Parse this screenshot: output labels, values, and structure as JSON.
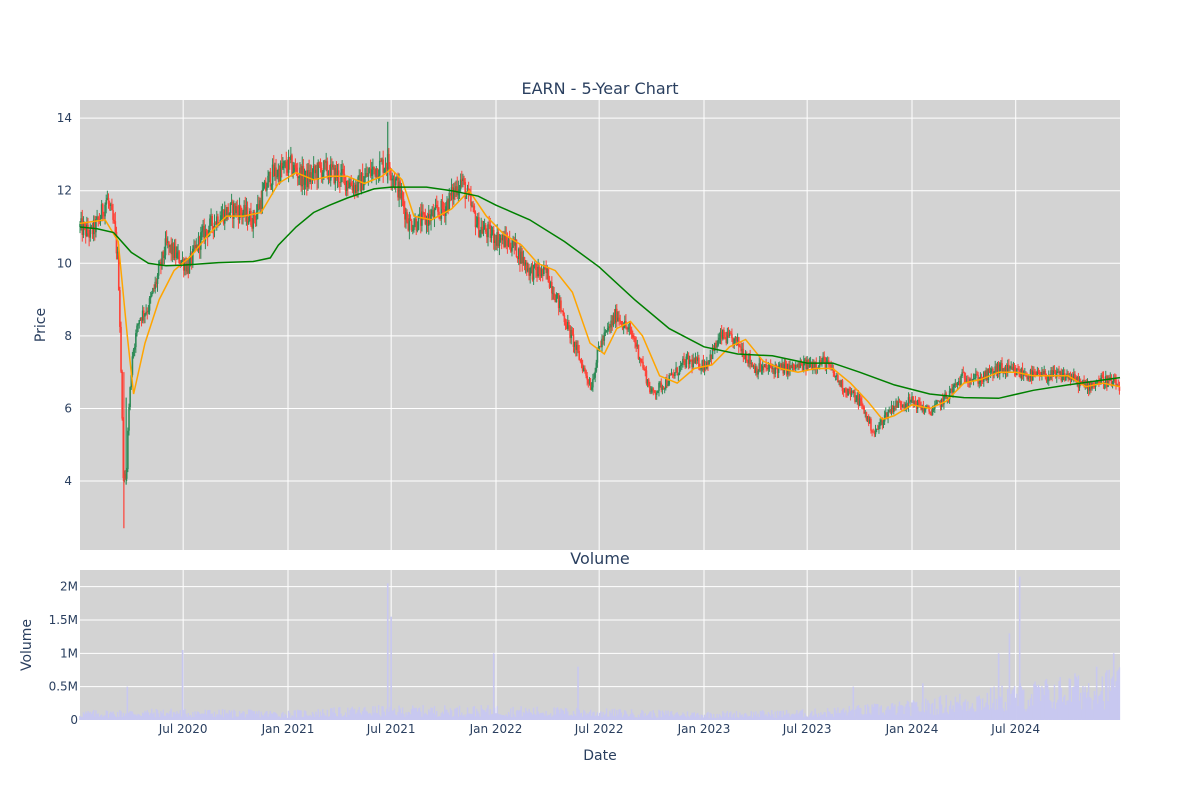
{
  "colors": {
    "plot_bg": "#d3d3d3",
    "grid": "#ffffff",
    "up": "#2e8b57",
    "down": "#ff4136",
    "ma_short": "#ffa500",
    "ma_long": "#008000",
    "volume": "#c8c8f0",
    "text": "#2a3f5f"
  },
  "chart_data": [
    {
      "type": "candlestick",
      "title": "EARN - 5-Year Chart",
      "ylabel": "Price",
      "ylim": [
        2.1,
        14.5
      ],
      "xlim": [
        "2020-01-02",
        "2024-12-31"
      ],
      "yticks": [
        4,
        6,
        8,
        10,
        12,
        14
      ],
      "grid": true,
      "close_path": [
        [
          "2020-01-02",
          11.0
        ],
        [
          "2020-01-20",
          10.8
        ],
        [
          "2020-02-05",
          11.2
        ],
        [
          "2020-02-18",
          11.8
        ],
        [
          "2020-03-02",
          11.0
        ],
        [
          "2020-03-09",
          10.0
        ],
        [
          "2020-03-13",
          7.8
        ],
        [
          "2020-03-18",
          4.2
        ],
        [
          "2020-03-23",
          4.0
        ],
        [
          "2020-03-27",
          5.8
        ],
        [
          "2020-04-03",
          7.5
        ],
        [
          "2020-04-15",
          8.5
        ],
        [
          "2020-05-01",
          8.8
        ],
        [
          "2020-05-15",
          9.5
        ],
        [
          "2020-06-01",
          10.5
        ],
        [
          "2020-06-20",
          10.2
        ],
        [
          "2020-07-10",
          9.9
        ],
        [
          "2020-08-01",
          10.7
        ],
        [
          "2020-09-01",
          11.3
        ],
        [
          "2020-10-01",
          11.5
        ],
        [
          "2020-11-01",
          11.2
        ],
        [
          "2020-12-01",
          12.4
        ],
        [
          "2021-01-04",
          12.7
        ],
        [
          "2021-02-01",
          12.3
        ],
        [
          "2021-03-01",
          12.6
        ],
        [
          "2021-04-01",
          12.4
        ],
        [
          "2021-05-01",
          12.1
        ],
        [
          "2021-06-01",
          12.6
        ],
        [
          "2021-06-25",
          12.8
        ],
        [
          "2021-07-15",
          12.0
        ],
        [
          "2021-08-01",
          11.1
        ],
        [
          "2021-09-01",
          11.2
        ],
        [
          "2021-10-01",
          11.5
        ],
        [
          "2021-11-01",
          12.3
        ],
        [
          "2021-12-01",
          11.0
        ],
        [
          "2022-01-03",
          10.7
        ],
        [
          "2022-02-01",
          10.5
        ],
        [
          "2022-03-01",
          9.8
        ],
        [
          "2022-04-01",
          9.7
        ],
        [
          "2022-05-01",
          8.5
        ],
        [
          "2022-06-01",
          7.2
        ],
        [
          "2022-06-17",
          6.6
        ],
        [
          "2022-07-01",
          7.7
        ],
        [
          "2022-08-01",
          8.6
        ],
        [
          "2022-09-01",
          7.9
        ],
        [
          "2022-10-01",
          6.4
        ],
        [
          "2022-11-01",
          6.8
        ],
        [
          "2022-12-01",
          7.3
        ],
        [
          "2023-01-03",
          7.2
        ],
        [
          "2023-02-01",
          8.0
        ],
        [
          "2023-03-01",
          7.8
        ],
        [
          "2023-04-01",
          7.1
        ],
        [
          "2023-05-01",
          7.1
        ],
        [
          "2023-06-01",
          7.1
        ],
        [
          "2023-07-01",
          7.2
        ],
        [
          "2023-08-01",
          7.3
        ],
        [
          "2023-09-01",
          6.6
        ],
        [
          "2023-10-01",
          6.2
        ],
        [
          "2023-10-27",
          5.3
        ],
        [
          "2023-11-15",
          5.8
        ],
        [
          "2023-12-01",
          6.1
        ],
        [
          "2024-01-02",
          6.2
        ],
        [
          "2024-02-01",
          5.9
        ],
        [
          "2024-03-01",
          6.3
        ],
        [
          "2024-04-01",
          6.9
        ],
        [
          "2024-05-01",
          6.8
        ],
        [
          "2024-06-01",
          7.1
        ],
        [
          "2024-07-01",
          7.0
        ],
        [
          "2024-08-01",
          6.9
        ],
        [
          "2024-09-01",
          6.9
        ],
        [
          "2024-10-01",
          6.9
        ],
        [
          "2024-11-01",
          6.6
        ],
        [
          "2024-12-01",
          6.8
        ],
        [
          "2024-12-31",
          6.6
        ]
      ],
      "ma_short": [
        [
          "2020-01-02",
          11.1
        ],
        [
          "2020-02-15",
          11.2
        ],
        [
          "2020-03-09",
          10.6
        ],
        [
          "2020-03-25",
          8.0
        ],
        [
          "2020-04-05",
          6.4
        ],
        [
          "2020-04-25",
          7.8
        ],
        [
          "2020-05-20",
          9.0
        ],
        [
          "2020-06-15",
          9.8
        ],
        [
          "2020-07-15",
          10.2
        ],
        [
          "2020-08-15",
          10.8
        ],
        [
          "2020-09-15",
          11.3
        ],
        [
          "2020-10-15",
          11.3
        ],
        [
          "2020-11-15",
          11.4
        ],
        [
          "2020-12-15",
          12.2
        ],
        [
          "2021-01-15",
          12.5
        ],
        [
          "2021-02-15",
          12.3
        ],
        [
          "2021-03-15",
          12.4
        ],
        [
          "2021-04-15",
          12.4
        ],
        [
          "2021-05-15",
          12.2
        ],
        [
          "2021-06-15",
          12.4
        ],
        [
          "2021-07-01",
          12.6
        ],
        [
          "2021-07-20",
          12.3
        ],
        [
          "2021-08-10",
          11.3
        ],
        [
          "2021-09-10",
          11.2
        ],
        [
          "2021-10-15",
          11.5
        ],
        [
          "2021-11-15",
          12.0
        ],
        [
          "2021-12-15",
          11.3
        ],
        [
          "2022-01-15",
          10.8
        ],
        [
          "2022-02-15",
          10.5
        ],
        [
          "2022-03-15",
          10.0
        ],
        [
          "2022-04-15",
          9.8
        ],
        [
          "2022-05-15",
          9.2
        ],
        [
          "2022-06-15",
          7.8
        ],
        [
          "2022-07-10",
          7.5
        ],
        [
          "2022-08-01",
          8.2
        ],
        [
          "2022-08-25",
          8.4
        ],
        [
          "2022-09-15",
          8.0
        ],
        [
          "2022-10-15",
          6.9
        ],
        [
          "2022-11-15",
          6.7
        ],
        [
          "2022-12-15",
          7.1
        ],
        [
          "2023-01-15",
          7.2
        ],
        [
          "2023-02-15",
          7.7
        ],
        [
          "2023-03-15",
          7.9
        ],
        [
          "2023-04-15",
          7.3
        ],
        [
          "2023-05-15",
          7.1
        ],
        [
          "2023-06-15",
          7.0
        ],
        [
          "2023-07-15",
          7.1
        ],
        [
          "2023-08-15",
          7.1
        ],
        [
          "2023-09-15",
          6.7
        ],
        [
          "2023-10-15",
          6.2
        ],
        [
          "2023-11-10",
          5.7
        ],
        [
          "2023-12-01",
          5.8
        ],
        [
          "2024-01-01",
          6.1
        ],
        [
          "2024-02-01",
          6.0
        ],
        [
          "2024-03-01",
          6.2
        ],
        [
          "2024-04-01",
          6.7
        ],
        [
          "2024-05-01",
          6.8
        ],
        [
          "2024-06-01",
          7.0
        ],
        [
          "2024-07-01",
          7.0
        ],
        [
          "2024-08-01",
          6.9
        ],
        [
          "2024-09-01",
          6.9
        ],
        [
          "2024-10-01",
          6.9
        ],
        [
          "2024-11-01",
          6.6
        ],
        [
          "2024-12-01",
          6.7
        ],
        [
          "2024-12-31",
          6.6
        ]
      ],
      "ma_long": [
        [
          "2020-01-02",
          11.0
        ],
        [
          "2020-02-01",
          10.95
        ],
        [
          "2020-03-01",
          10.85
        ],
        [
          "2020-04-01",
          10.3
        ],
        [
          "2020-05-01",
          10.0
        ],
        [
          "2020-06-01",
          9.93
        ],
        [
          "2020-07-01",
          9.95
        ],
        [
          "2020-09-01",
          10.02
        ],
        [
          "2020-11-01",
          10.05
        ],
        [
          "2020-12-01",
          10.15
        ],
        [
          "2020-12-15",
          10.5
        ],
        [
          "2021-01-15",
          11.0
        ],
        [
          "2021-02-15",
          11.4
        ],
        [
          "2021-03-15",
          11.6
        ],
        [
          "2021-04-15",
          11.8
        ],
        [
          "2021-06-01",
          12.05
        ],
        [
          "2021-07-01",
          12.1
        ],
        [
          "2021-09-01",
          12.1
        ],
        [
          "2021-10-15",
          12.0
        ],
        [
          "2021-12-01",
          11.85
        ],
        [
          "2022-01-01",
          11.6
        ],
        [
          "2022-03-01",
          11.2
        ],
        [
          "2022-05-01",
          10.6
        ],
        [
          "2022-07-01",
          9.9
        ],
        [
          "2022-09-01",
          9.0
        ],
        [
          "2022-11-01",
          8.2
        ],
        [
          "2023-01-01",
          7.7
        ],
        [
          "2023-03-01",
          7.5
        ],
        [
          "2023-05-01",
          7.45
        ],
        [
          "2023-07-01",
          7.25
        ],
        [
          "2023-08-15",
          7.25
        ],
        [
          "2023-10-01",
          7.0
        ],
        [
          "2023-12-01",
          6.65
        ],
        [
          "2024-02-01",
          6.4
        ],
        [
          "2024-04-01",
          6.3
        ],
        [
          "2024-06-01",
          6.28
        ],
        [
          "2024-08-01",
          6.5
        ],
        [
          "2024-10-01",
          6.65
        ],
        [
          "2024-12-31",
          6.85
        ]
      ]
    },
    {
      "type": "bar",
      "title": "Volume",
      "xlabel": "Date",
      "ylabel": "Volume",
      "ylim": [
        0,
        2250000
      ],
      "yticks": [
        0,
        500000,
        1000000,
        1500000,
        2000000
      ],
      "ytick_labels": [
        "0",
        "0.5M",
        "1M",
        "1.5M",
        "2M"
      ],
      "xticks": [
        "2020-07-01",
        "2021-01-01",
        "2021-07-01",
        "2022-01-01",
        "2022-07-01",
        "2023-01-01",
        "2023-07-01",
        "2024-01-01",
        "2024-07-01"
      ],
      "xtick_labels": [
        "Jul 2020",
        "Jan 2021",
        "Jul 2021",
        "Jan 2022",
        "Jul 2022",
        "Jan 2023",
        "Jul 2023",
        "Jan 2024",
        "Jul 2024"
      ],
      "baseline_path": [
        [
          "2020-01-02",
          100000
        ],
        [
          "2020-06-01",
          120000
        ],
        [
          "2021-01-01",
          100000
        ],
        [
          "2021-06-01",
          150000
        ],
        [
          "2022-01-01",
          150000
        ],
        [
          "2022-07-01",
          120000
        ],
        [
          "2023-01-01",
          90000
        ],
        [
          "2023-07-01",
          110000
        ],
        [
          "2024-01-01",
          200000
        ],
        [
          "2024-06-01",
          350000
        ],
        [
          "2024-12-31",
          550000
        ]
      ],
      "spikes": [
        [
          "2020-03-25",
          500000
        ],
        [
          "2020-06-30",
          1050000
        ],
        [
          "2021-06-25",
          2050000
        ],
        [
          "2021-07-01",
          1550000
        ],
        [
          "2021-12-28",
          1000000
        ],
        [
          "2022-05-25",
          800000
        ],
        [
          "2023-09-20",
          500000
        ],
        [
          "2024-01-20",
          550000
        ],
        [
          "2024-06-01",
          1000000
        ],
        [
          "2024-06-20",
          1300000
        ],
        [
          "2024-07-08",
          2150000
        ],
        [
          "2024-10-15",
          650000
        ],
        [
          "2024-11-20",
          800000
        ],
        [
          "2024-12-20",
          1000000
        ]
      ]
    }
  ]
}
